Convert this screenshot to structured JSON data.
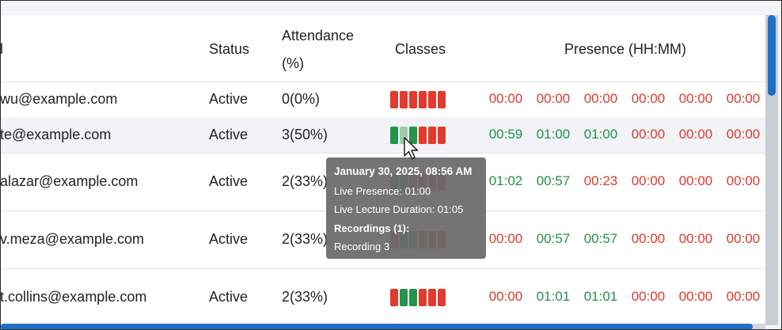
{
  "columns": {
    "email": "l",
    "status": "Status",
    "attendance_line1": "Attendance",
    "attendance_line2": "(%)",
    "classes": "Classes",
    "presence": "Presence (HH:MM)"
  },
  "rows": [
    {
      "email": "wu@example.com",
      "status": "Active",
      "attendance": "0(0%)",
      "classes": [
        "red",
        "red",
        "red",
        "red",
        "red",
        "red"
      ],
      "presence": [
        {
          "v": "00:00",
          "c": "red"
        },
        {
          "v": "00:00",
          "c": "red"
        },
        {
          "v": "00:00",
          "c": "red"
        },
        {
          "v": "00:00",
          "c": "red"
        },
        {
          "v": "00:00",
          "c": "red"
        },
        {
          "v": "00:00",
          "c": "red"
        }
      ]
    },
    {
      "email": "te@example.com",
      "status": "Active",
      "attendance": "3(50%)",
      "classes": [
        "green",
        "light",
        "green",
        "red",
        "red",
        "red"
      ],
      "presence": [
        {
          "v": "00:59",
          "c": "green"
        },
        {
          "v": "01:00",
          "c": "green"
        },
        {
          "v": "01:00",
          "c": "green"
        },
        {
          "v": "00:00",
          "c": "red"
        },
        {
          "v": "00:00",
          "c": "red"
        },
        {
          "v": "00:00",
          "c": "red"
        }
      ]
    },
    {
      "email": "alazar@example.com",
      "status": "Active",
      "attendance": "2(33%)",
      "classes": [
        "green",
        "green",
        "red",
        "red",
        "red",
        "red"
      ],
      "presence": [
        {
          "v": "01:02",
          "c": "green"
        },
        {
          "v": "00:57",
          "c": "green"
        },
        {
          "v": "00:23",
          "c": "red"
        },
        {
          "v": "00:00",
          "c": "red"
        },
        {
          "v": "00:00",
          "c": "red"
        },
        {
          "v": "00:00",
          "c": "red"
        }
      ]
    },
    {
      "email": "v.meza@example.com",
      "status": "Active",
      "attendance": "2(33%)",
      "classes": [
        "red",
        "green",
        "green",
        "red",
        "red",
        "red"
      ],
      "presence": [
        {
          "v": "00:00",
          "c": "red"
        },
        {
          "v": "00:57",
          "c": "green"
        },
        {
          "v": "00:57",
          "c": "green"
        },
        {
          "v": "00:00",
          "c": "red"
        },
        {
          "v": "00:00",
          "c": "red"
        },
        {
          "v": "00:00",
          "c": "red"
        }
      ]
    },
    {
      "email": "t.collins@example.com",
      "status": "Active",
      "attendance": "2(33%)",
      "classes": [
        "red",
        "green",
        "green",
        "red",
        "red",
        "red"
      ],
      "presence": [
        {
          "v": "00:00",
          "c": "red"
        },
        {
          "v": "01:01",
          "c": "green"
        },
        {
          "v": "01:01",
          "c": "green"
        },
        {
          "v": "00:00",
          "c": "red"
        },
        {
          "v": "00:00",
          "c": "red"
        },
        {
          "v": "00:00",
          "c": "red"
        }
      ]
    }
  ],
  "tooltip": {
    "date": "January 30, 2025, 08:56 AM",
    "live_presence": "Live Presence: 01:00",
    "lecture_duration": "Live Lecture Duration: 01:05",
    "recordings_title": "Recordings (1):",
    "recording_item": "Recording 3"
  },
  "colors": {
    "red": "#e23b2e",
    "green": "#26934a",
    "accent": "#1f6fc5"
  },
  "icons": {
    "cursor": "mouse-pointer-icon"
  }
}
